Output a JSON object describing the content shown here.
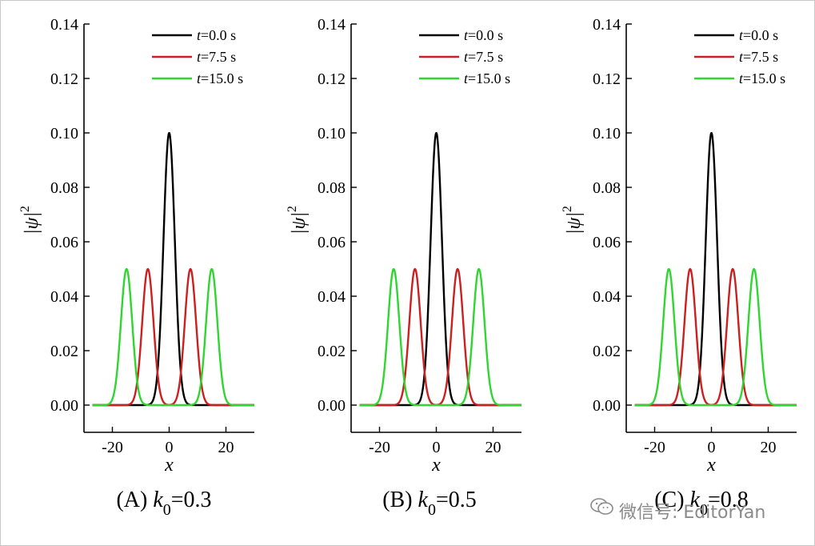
{
  "chart_data": [
    {
      "type": "line",
      "caption": {
        "prefix": "(A) ",
        "var": "k",
        "sub": "0",
        "value": "=0.3"
      },
      "xlabel": "x",
      "ylabel": {
        "base": "|ψ|",
        "sup": "2"
      },
      "xlim": [
        -30,
        30
      ],
      "ylim": [
        -0.01,
        0.14
      ],
      "xticks": [
        -20,
        0,
        20
      ],
      "yticks": [
        "0.00",
        "0.02",
        "0.04",
        "0.06",
        "0.08",
        "0.10",
        "0.12",
        "0.14"
      ],
      "legend_position": "top-right",
      "series": [
        {
          "name": "t=0.0 s",
          "var": "t",
          "label": "=0.0 s",
          "color": "#000000",
          "peaks": [
            0
          ],
          "amplitude": 0.1,
          "sigma": 2.0
        },
        {
          "name": "t=7.5 s",
          "var": "t",
          "label": "=7.5 s",
          "color": "#cc1f1f",
          "peaks": [
            -7.5,
            7.5
          ],
          "amplitude": 0.05,
          "sigma": 2.0
        },
        {
          "name": "t=15.0 s",
          "var": "t",
          "label": "=15.0 s",
          "color": "#2fd62f",
          "peaks": [
            -15,
            15
          ],
          "amplitude": 0.05,
          "sigma": 2.0
        }
      ]
    },
    {
      "type": "line",
      "caption": {
        "prefix": "(B) ",
        "var": "k",
        "sub": "0",
        "value": "=0.5"
      },
      "xlabel": "x",
      "ylabel": {
        "base": "|ψ|",
        "sup": "2"
      },
      "xlim": [
        -30,
        30
      ],
      "ylim": [
        -0.01,
        0.14
      ],
      "xticks": [
        -20,
        0,
        20
      ],
      "yticks": [
        "0.00",
        "0.02",
        "0.04",
        "0.06",
        "0.08",
        "0.10",
        "0.12",
        "0.14"
      ],
      "legend_position": "top-right",
      "series": [
        {
          "name": "t=0.0 s",
          "var": "t",
          "label": "=0.0 s",
          "color": "#000000",
          "peaks": [
            0
          ],
          "amplitude": 0.1,
          "sigma": 2.0
        },
        {
          "name": "t=7.5 s",
          "var": "t",
          "label": "=7.5 s",
          "color": "#cc1f1f",
          "peaks": [
            -7.5,
            7.5
          ],
          "amplitude": 0.05,
          "sigma": 2.0
        },
        {
          "name": "t=15.0 s",
          "var": "t",
          "label": "=15.0 s",
          "color": "#2fd62f",
          "peaks": [
            -15,
            15
          ],
          "amplitude": 0.05,
          "sigma": 2.0
        }
      ]
    },
    {
      "type": "line",
      "caption": {
        "prefix": "(C) ",
        "var": "k",
        "sub": "0",
        "value": "=0.8"
      },
      "xlabel": "x",
      "ylabel": {
        "base": "|ψ|",
        "sup": "2"
      },
      "xlim": [
        -30,
        30
      ],
      "ylim": [
        -0.01,
        0.14
      ],
      "xticks": [
        -20,
        0,
        20
      ],
      "yticks": [
        "0.00",
        "0.02",
        "0.04",
        "0.06",
        "0.08",
        "0.10",
        "0.12",
        "0.14"
      ],
      "legend_position": "top-right",
      "series": [
        {
          "name": "t=0.0 s",
          "var": "t",
          "label": "=0.0 s",
          "color": "#000000",
          "peaks": [
            0
          ],
          "amplitude": 0.1,
          "sigma": 2.0
        },
        {
          "name": "t=7.5 s",
          "var": "t",
          "label": "=7.5 s",
          "color": "#cc1f1f",
          "peaks": [
            -7.5,
            7.5
          ],
          "amplitude": 0.05,
          "sigma": 2.0
        },
        {
          "name": "t=15.0 s",
          "var": "t",
          "label": "=15.0 s",
          "color": "#2fd62f",
          "peaks": [
            -15,
            15
          ],
          "amplitude": 0.05,
          "sigma": 2.0
        }
      ]
    }
  ],
  "watermark": {
    "text": "微信号: EditorYan",
    "icon": "wechat-icon"
  }
}
